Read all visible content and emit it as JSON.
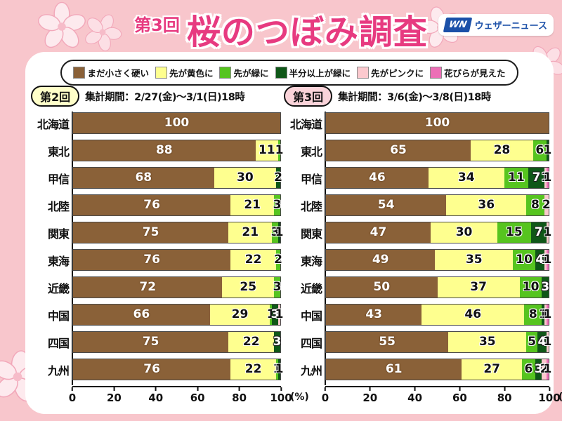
{
  "header": {
    "round_label": "第3回",
    "title": "桜のつぼみ調査",
    "logo_mark": "WN",
    "logo_text": "ウェザーニュース"
  },
  "legend": [
    {
      "label": "まだ小さく硬い",
      "color": "#8a6138"
    },
    {
      "label": "先が黄色に",
      "color": "#feff8f"
    },
    {
      "label": "先が緑に",
      "color": "#56c41f"
    },
    {
      "label": "半分以上が緑に",
      "color": "#0f5718"
    },
    {
      "label": "先がピンクに",
      "color": "#fbc9ce"
    },
    {
      "label": "花びらが見えた",
      "color": "#ec6fb6"
    }
  ],
  "charts": [
    {
      "badge": "第2回",
      "badge_bg": "#ffffc9",
      "period": "集計期間：2/27(金)～3/1(日)18時"
    },
    {
      "badge": "第3回",
      "badge_bg": "#fad3d9",
      "period": "集計期間：3/6(金)～3/8(日)18時"
    }
  ],
  "chart_data": [
    {
      "type": "bar",
      "stacked": true,
      "title": "第2回 集計期間：2/27(金)～3/1(日)18時",
      "categories": [
        "北海道",
        "東北",
        "甲信",
        "北陸",
        "関東",
        "東海",
        "近畿",
        "中国",
        "四国",
        "九州"
      ],
      "series": [
        {
          "key": "brown",
          "name": "まだ小さく硬い",
          "color": "#8a6138",
          "values": [
            100,
            88,
            68,
            76,
            75,
            76,
            72,
            66,
            75,
            76
          ]
        },
        {
          "key": "yellow",
          "name": "先が黄色に",
          "color": "#feff8f",
          "values": [
            0,
            11,
            30,
            21,
            21,
            22,
            25,
            29,
            22,
            22
          ]
        },
        {
          "key": "lgreen",
          "name": "先が緑に",
          "color": "#56c41f",
          "values": [
            0,
            1,
            0,
            3,
            3,
            2,
            3,
            1,
            0,
            1
          ]
        },
        {
          "key": "dgreen",
          "name": "半分以上が緑に",
          "color": "#0f5718",
          "values": [
            0,
            0,
            2,
            0,
            1,
            0,
            0,
            3,
            3,
            1
          ]
        },
        {
          "key": "pink",
          "name": "先がピンクに",
          "color": "#fbc9ce",
          "values": [
            0,
            0,
            0,
            0,
            0,
            0,
            0,
            1,
            0,
            0
          ]
        },
        {
          "key": "magenta",
          "name": "花びらが見えた",
          "color": "#ec6fb6",
          "values": [
            0,
            0,
            0,
            0,
            0,
            0,
            0,
            0,
            0,
            0
          ]
        }
      ],
      "xlim": [
        0,
        100
      ],
      "x_ticks": [
        0,
        20,
        40,
        60,
        80,
        100
      ],
      "xlabel": "(%)",
      "grid": false,
      "legend_position": "top"
    },
    {
      "type": "bar",
      "stacked": true,
      "title": "第3回 集計期間：3/6(金)～3/8(日)18時",
      "categories": [
        "北海道",
        "東北",
        "甲信",
        "北陸",
        "関東",
        "東海",
        "近畿",
        "中国",
        "四国",
        "九州"
      ],
      "series": [
        {
          "key": "brown",
          "name": "まだ小さく硬い",
          "color": "#8a6138",
          "values": [
            100,
            65,
            46,
            54,
            47,
            49,
            50,
            43,
            55,
            61
          ]
        },
        {
          "key": "yellow",
          "name": "先が黄色に",
          "color": "#feff8f",
          "values": [
            0,
            28,
            34,
            36,
            30,
            35,
            37,
            46,
            35,
            27
          ]
        },
        {
          "key": "lgreen",
          "name": "先が緑に",
          "color": "#56c41f",
          "values": [
            0,
            6,
            11,
            8,
            15,
            10,
            10,
            8,
            5,
            6
          ]
        },
        {
          "key": "dgreen",
          "name": "半分以上が緑に",
          "color": "#0f5718",
          "values": [
            0,
            1,
            7,
            0,
            7,
            4,
            3,
            1,
            4,
            3
          ]
        },
        {
          "key": "pink",
          "name": "先がピンクに",
          "color": "#fbc9ce",
          "values": [
            0,
            0,
            1,
            2,
            1,
            1,
            0,
            1,
            1,
            2
          ]
        },
        {
          "key": "magenta",
          "name": "花びらが見えた",
          "color": "#ec6fb6",
          "values": [
            0,
            0,
            1,
            0,
            0,
            1,
            0,
            1,
            0,
            1
          ]
        }
      ],
      "xlim": [
        0,
        100
      ],
      "x_ticks": [
        0,
        20,
        40,
        60,
        80,
        100
      ],
      "xlabel": "(%)",
      "grid": false,
      "legend_position": "top"
    }
  ]
}
